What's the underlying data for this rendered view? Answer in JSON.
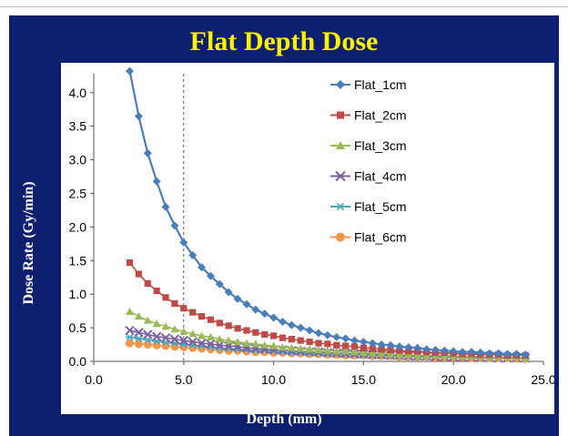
{
  "chart_data": {
    "type": "line",
    "title": "Flat Depth Dose",
    "xlabel": "Depth (mm)",
    "ylabel": "Dose Rate (Gy/min)",
    "xlim": [
      0,
      25
    ],
    "ylim": [
      0,
      4.2
    ],
    "x_ticks": [
      "0.0",
      "5.0",
      "10.0",
      "15.0",
      "20.0",
      "25.0"
    ],
    "y_ticks": [
      "0.0",
      "0.5",
      "1.0",
      "1.5",
      "2.0",
      "2.5",
      "3.0",
      "3.5",
      "4.0"
    ],
    "reference_line_x": 5,
    "legend_position": "top-right",
    "grid": false,
    "series": [
      {
        "name": "Flat_1cm",
        "color": "#4a7ebb",
        "marker": "diamond",
        "x": [
          2.0,
          2.5,
          3.0,
          3.5,
          4.0,
          4.5,
          5.0,
          5.5,
          6.0,
          6.5,
          7.0,
          7.5,
          8.0,
          8.5,
          9.0,
          9.5,
          10.0,
          10.5,
          11.0,
          11.5,
          12.0,
          12.5,
          13.0,
          13.5,
          14.0,
          14.5,
          15.0,
          15.5,
          16.0,
          16.5,
          17.0,
          17.5,
          18.0,
          18.5,
          19.0,
          19.5,
          20.0,
          20.5,
          21.0,
          21.5,
          22.0,
          22.5,
          23.0,
          23.5,
          24.0
        ],
        "y": [
          4.32,
          3.65,
          3.1,
          2.68,
          2.3,
          2.02,
          1.77,
          1.58,
          1.4,
          1.27,
          1.15,
          1.03,
          0.93,
          0.85,
          0.77,
          0.71,
          0.65,
          0.59,
          0.54,
          0.5,
          0.46,
          0.42,
          0.39,
          0.36,
          0.34,
          0.31,
          0.29,
          0.27,
          0.25,
          0.24,
          0.22,
          0.21,
          0.2,
          0.18,
          0.17,
          0.16,
          0.15,
          0.14,
          0.14,
          0.13,
          0.12,
          0.12,
          0.11,
          0.11,
          0.1
        ]
      },
      {
        "name": "Flat_2cm",
        "color": "#be4b48",
        "marker": "square",
        "x": [
          2.0,
          2.5,
          3.0,
          3.5,
          4.0,
          4.5,
          5.0,
          5.5,
          6.0,
          6.5,
          7.0,
          7.5,
          8.0,
          8.5,
          9.0,
          9.5,
          10.0,
          10.5,
          11.0,
          11.5,
          12.0,
          12.5,
          13.0,
          13.5,
          14.0,
          14.5,
          15.0,
          15.5,
          16.0,
          16.5,
          17.0,
          17.5,
          18.0,
          18.5,
          19.0,
          19.5,
          20.0,
          20.5,
          21.0,
          21.5,
          22.0,
          22.5,
          23.0,
          23.5,
          24.0
        ],
        "y": [
          1.47,
          1.3,
          1.16,
          1.05,
          0.95,
          0.86,
          0.79,
          0.73,
          0.67,
          0.62,
          0.57,
          0.53,
          0.49,
          0.46,
          0.43,
          0.4,
          0.38,
          0.35,
          0.33,
          0.31,
          0.29,
          0.27,
          0.26,
          0.24,
          0.23,
          0.22,
          0.2,
          0.19,
          0.18,
          0.17,
          0.16,
          0.15,
          0.15,
          0.14,
          0.13,
          0.13,
          0.12,
          0.11,
          0.11,
          0.1,
          0.1,
          0.1,
          0.09,
          0.09,
          0.09
        ]
      },
      {
        "name": "Flat_3cm",
        "color": "#9bbb59",
        "marker": "triangle",
        "x": [
          2.0,
          2.5,
          3.0,
          3.5,
          4.0,
          4.5,
          5.0,
          5.5,
          6.0,
          6.5,
          7.0,
          7.5,
          8.0,
          8.5,
          9.0,
          9.5,
          10.0,
          10.5,
          11.0,
          11.5,
          12.0,
          12.5,
          13.0,
          13.5,
          14.0,
          14.5,
          15.0,
          15.5,
          16.0,
          16.5,
          17.0,
          17.5,
          18.0,
          18.5,
          19.0,
          19.5,
          20.0,
          20.5,
          21.0,
          21.5,
          22.0,
          22.5,
          23.0,
          23.5,
          24.0
        ],
        "y": [
          0.74,
          0.67,
          0.61,
          0.56,
          0.52,
          0.48,
          0.44,
          0.41,
          0.38,
          0.36,
          0.33,
          0.31,
          0.29,
          0.27,
          0.26,
          0.24,
          0.23,
          0.21,
          0.2,
          0.19,
          0.18,
          0.17,
          0.16,
          0.15,
          0.15,
          0.14,
          0.13,
          0.12,
          0.12,
          0.11,
          0.1,
          0.1,
          0.09,
          0.09,
          0.09,
          0.08,
          0.08,
          0.07,
          0.07,
          0.07,
          0.06,
          0.06,
          0.06,
          0.06,
          0.05
        ]
      },
      {
        "name": "Flat_4cm",
        "color": "#7d60a0",
        "marker": "x",
        "x": [
          2.0,
          2.5,
          3.0,
          3.5,
          4.0,
          4.5,
          5.0,
          5.5,
          6.0,
          6.5,
          7.0,
          7.5,
          8.0,
          8.5,
          9.0,
          9.5,
          10.0,
          10.5,
          11.0,
          11.5,
          12.0,
          12.5,
          13.0,
          13.5,
          14.0,
          14.5,
          15.0,
          15.5,
          16.0,
          16.5,
          17.0,
          17.5,
          18.0,
          18.5,
          19.0,
          19.5,
          20.0,
          20.5,
          21.0,
          21.5,
          22.0,
          22.5,
          23.0,
          23.5,
          24.0
        ],
        "y": [
          0.46,
          0.43,
          0.4,
          0.37,
          0.35,
          0.33,
          0.31,
          0.29,
          0.27,
          0.26,
          0.24,
          0.23,
          0.22,
          0.2,
          0.19,
          0.18,
          0.17,
          0.17,
          0.16,
          0.15,
          0.14,
          0.14,
          0.13,
          0.12,
          0.12,
          0.11,
          0.11,
          0.1,
          0.1,
          0.09,
          0.09,
          0.08,
          0.08,
          0.08,
          0.07,
          0.07,
          0.07,
          0.06,
          0.06,
          0.06,
          0.06,
          0.05,
          0.05,
          0.05,
          0.05
        ]
      },
      {
        "name": "Flat_5cm",
        "color": "#46aac5",
        "marker": "star",
        "x": [
          2.0,
          2.5,
          3.0,
          3.5,
          4.0,
          4.5,
          5.0,
          5.5,
          6.0,
          6.5,
          7.0,
          7.5,
          8.0,
          8.5,
          9.0,
          9.5,
          10.0,
          10.5,
          11.0,
          11.5,
          12.0,
          12.5,
          13.0,
          13.5,
          14.0,
          14.5,
          15.0,
          15.5,
          16.0,
          16.5,
          17.0,
          17.5,
          18.0,
          18.5,
          19.0,
          19.5,
          20.0,
          20.5,
          21.0,
          21.5,
          22.0,
          22.5,
          23.0,
          23.5,
          24.0
        ],
        "y": [
          0.36,
          0.34,
          0.32,
          0.3,
          0.28,
          0.27,
          0.25,
          0.24,
          0.23,
          0.21,
          0.2,
          0.19,
          0.18,
          0.17,
          0.16,
          0.16,
          0.15,
          0.14,
          0.13,
          0.13,
          0.12,
          0.12,
          0.11,
          0.11,
          0.1,
          0.1,
          0.09,
          0.09,
          0.09,
          0.08,
          0.08,
          0.08,
          0.07,
          0.07,
          0.07,
          0.06,
          0.06,
          0.06,
          0.06,
          0.05,
          0.05,
          0.05,
          0.05,
          0.05,
          0.04
        ]
      },
      {
        "name": "Flat_6cm",
        "color": "#f79646",
        "marker": "circle",
        "x": [
          2.0,
          2.5,
          3.0,
          3.5,
          4.0,
          4.5,
          5.0,
          5.5,
          6.0,
          6.5,
          7.0,
          7.5,
          8.0,
          8.5,
          9.0,
          9.5,
          10.0,
          10.5,
          11.0,
          11.5,
          12.0,
          12.5,
          13.0,
          13.5,
          14.0,
          14.5,
          15.0,
          15.5,
          16.0,
          16.5,
          17.0,
          17.5,
          18.0,
          18.5,
          19.0,
          19.5,
          20.0,
          20.5,
          21.0,
          21.5,
          22.0,
          22.5,
          23.0,
          23.5,
          24.0
        ],
        "y": [
          0.27,
          0.26,
          0.25,
          0.24,
          0.23,
          0.22,
          0.21,
          0.2,
          0.19,
          0.18,
          0.17,
          0.16,
          0.16,
          0.15,
          0.14,
          0.14,
          0.13,
          0.13,
          0.12,
          0.12,
          0.11,
          0.11,
          0.1,
          0.1,
          0.09,
          0.09,
          0.09,
          0.08,
          0.08,
          0.08,
          0.07,
          0.07,
          0.07,
          0.07,
          0.06,
          0.06,
          0.06,
          0.06,
          0.05,
          0.05,
          0.05,
          0.05,
          0.05,
          0.04,
          0.04
        ]
      }
    ]
  }
}
